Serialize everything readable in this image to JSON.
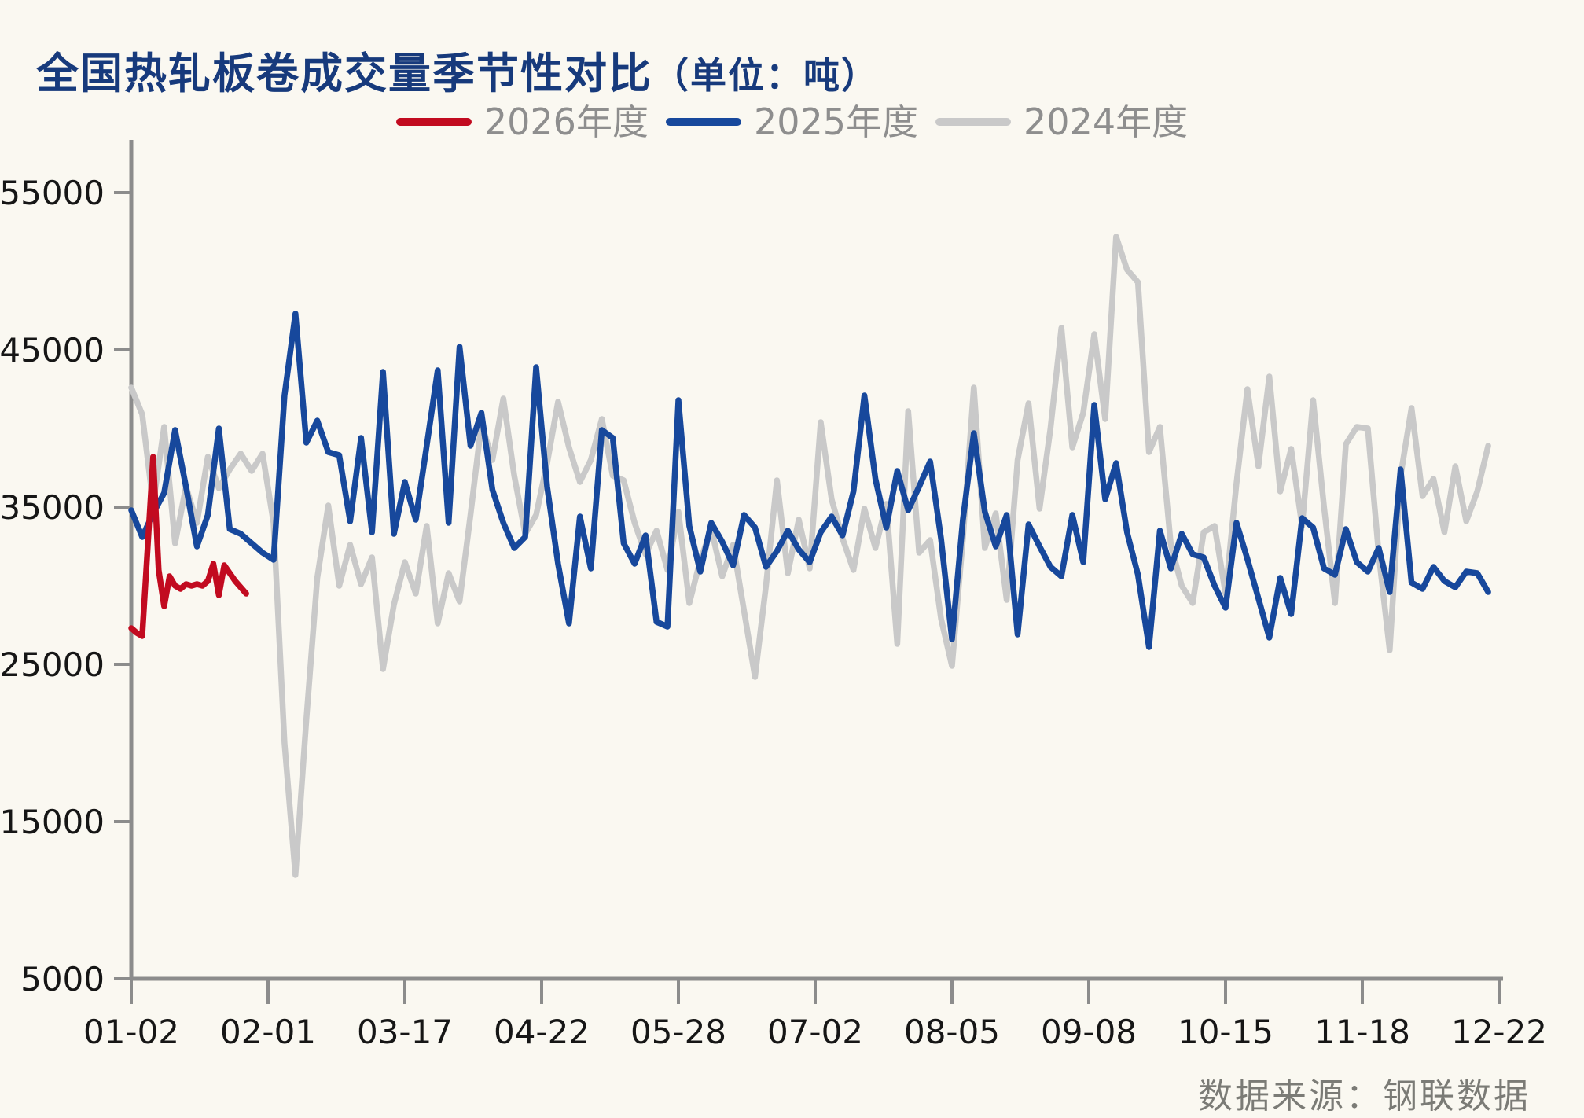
{
  "title": {
    "main": "全国热轧板卷成交量季节性对比",
    "unit": "（单位：吨）"
  },
  "source": "数据来源：钢联数据",
  "colors": {
    "background": "#faf8f1",
    "title_text": "#173a7c",
    "legend_text": "#8e8e8e",
    "axis_text": "#161616",
    "axis_line": "#8c8c8c"
  },
  "chart_data": {
    "type": "line",
    "title": "全国热轧板卷成交量季节性对比（单位：吨）",
    "xlabel": "",
    "ylabel": "",
    "ylim": [
      5000,
      55000
    ],
    "grid": false,
    "legend_position": "top-center",
    "y_ticks": [
      5000,
      15000,
      25000,
      35000,
      45000,
      55000
    ],
    "x_tick_labels": [
      "01-02",
      "02-01",
      "03-17",
      "04-22",
      "05-28",
      "07-02",
      "08-05",
      "09-08",
      "10-15",
      "11-18",
      "12-22"
    ],
    "x_tick_days": [
      0,
      25,
      50,
      75,
      100,
      125,
      150,
      175,
      200,
      225,
      250
    ],
    "x_axis_day_span": 250,
    "series": [
      {
        "name": "2026年度",
        "color": "#c20b20",
        "day_start": 0,
        "day_step": 1,
        "values": [
          27300,
          27000,
          26800,
          32500,
          38200,
          31000,
          28700,
          30600,
          30000,
          29800,
          30100,
          30000,
          30100,
          30000,
          30300,
          31400,
          29400,
          31300,
          30800,
          30300,
          29900,
          29500
        ]
      },
      {
        "name": "2025年度",
        "color": "#17489c",
        "day_start": 0,
        "day_step": 2,
        "values": [
          34800,
          33100,
          34600,
          35900,
          39900,
          36300,
          32500,
          34500,
          40000,
          33600,
          33300,
          32700,
          32100,
          31650,
          42100,
          47300,
          39100,
          40500,
          38500,
          38300,
          34100,
          39400,
          33400,
          43600,
          33300,
          36600,
          34200,
          38900,
          43700,
          34000,
          45200,
          38900,
          41000,
          36100,
          34000,
          32400,
          33100,
          43900,
          36300,
          31400,
          27600,
          34400,
          31100,
          39900,
          39400,
          32700,
          31400,
          33200,
          27700,
          27400,
          41800,
          33800,
          30900,
          34000,
          32800,
          31300,
          34500,
          33700,
          31200,
          32200,
          33500,
          32300,
          31500,
          33400,
          34400,
          33200,
          36000,
          42100,
          36800,
          33700,
          37300,
          34800,
          36300,
          37900,
          33000,
          26600,
          34200,
          39700,
          34700,
          32500,
          34500,
          26900,
          33900,
          32500,
          31200,
          30600,
          34500,
          31500,
          41500,
          35500,
          37800,
          33400,
          30700,
          26100,
          33500,
          31100,
          33300,
          32000,
          31800,
          30000,
          28600,
          34000,
          31700,
          29200,
          26700,
          30500,
          28200,
          34300,
          33700,
          31100,
          30700,
          33600,
          31500,
          30900,
          32400,
          29600,
          37400,
          30200,
          29800,
          31200,
          30300,
          29900,
          30900,
          30800,
          29600
        ]
      },
      {
        "name": "2024年度",
        "color": "#c9c9c9",
        "day_start": 0,
        "day_step": 2,
        "values": [
          42600,
          40900,
          35200,
          40100,
          32700,
          36300,
          34000,
          38200,
          36200,
          37400,
          38400,
          37300,
          38400,
          34000,
          20000,
          11600,
          21500,
          30500,
          35100,
          30000,
          32600,
          30100,
          31800,
          24700,
          28800,
          31500,
          29500,
          33800,
          27600,
          30800,
          29000,
          34500,
          40300,
          38000,
          41900,
          37000,
          33300,
          34500,
          37800,
          41700,
          38800,
          36600,
          38000,
          40600,
          37000,
          36700,
          34000,
          32000,
          33500,
          31000,
          34700,
          28900,
          31600,
          33600,
          30600,
          32600,
          28400,
          24200,
          30000,
          36700,
          30800,
          34200,
          31100,
          40400,
          35500,
          33000,
          31000,
          34900,
          32400,
          35200,
          26300,
          41100,
          32100,
          32900,
          27900,
          24900,
          33000,
          42600,
          32400,
          34600,
          29100,
          38000,
          41600,
          34900,
          40000,
          46400,
          38800,
          41000,
          46000,
          40600,
          52200,
          50100,
          49300,
          38500,
          40100,
          32600,
          30000,
          28900,
          33400,
          33800,
          29500,
          36500,
          42500,
          37600,
          43300,
          36000,
          38700,
          33800,
          41800,
          35000,
          28900,
          39000,
          40100,
          40000,
          32000,
          25900,
          37000,
          41300,
          35700,
          36800,
          33400,
          37600,
          34100,
          36000,
          38900
        ]
      }
    ]
  }
}
